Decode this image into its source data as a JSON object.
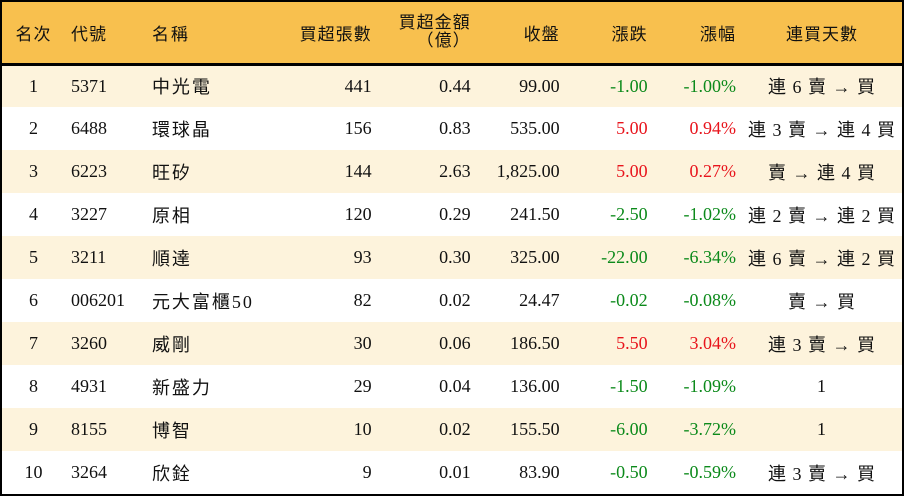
{
  "table": {
    "headers": {
      "rank": "名次",
      "code": "代號",
      "name": "名稱",
      "net_buy_lots": "買超張數",
      "net_buy_amount_line1": "買超金額",
      "net_buy_amount_line2": "（億）",
      "close": "收盤",
      "change": "漲跌",
      "change_pct": "漲幅",
      "buy_streak": "連買天數"
    },
    "colors": {
      "header_bg": "#f8c04e",
      "odd_row_bg": "#fdf3dc",
      "even_row_bg": "#ffffff",
      "up": "#e8141c",
      "down": "#0c8a1b"
    },
    "rows": [
      {
        "rank": "1",
        "code": "5371",
        "name": "中光電",
        "lots": "441",
        "amount": "0.44",
        "close": "99.00",
        "change": "-1.00",
        "pct": "-1.00%",
        "dir": "down",
        "streak": "連 6 賣 → 買"
      },
      {
        "rank": "2",
        "code": "6488",
        "name": "環球晶",
        "lots": "156",
        "amount": "0.83",
        "close": "535.00",
        "change": "5.00",
        "pct": "0.94%",
        "dir": "up",
        "streak": "連 3 賣 → 連 4 買"
      },
      {
        "rank": "3",
        "code": "6223",
        "name": "旺矽",
        "lots": "144",
        "amount": "2.63",
        "close": "1,825.00",
        "change": "5.00",
        "pct": "0.27%",
        "dir": "up",
        "streak": "賣 → 連 4 買"
      },
      {
        "rank": "4",
        "code": "3227",
        "name": "原相",
        "lots": "120",
        "amount": "0.29",
        "close": "241.50",
        "change": "-2.50",
        "pct": "-1.02%",
        "dir": "down",
        "streak": "連 2 賣 → 連 2 買"
      },
      {
        "rank": "5",
        "code": "3211",
        "name": "順達",
        "lots": "93",
        "amount": "0.30",
        "close": "325.00",
        "change": "-22.00",
        "pct": "-6.34%",
        "dir": "down",
        "streak": "連 6 賣 → 連 2 買"
      },
      {
        "rank": "6",
        "code": "006201",
        "name": "元大富櫃50",
        "lots": "82",
        "amount": "0.02",
        "close": "24.47",
        "change": "-0.02",
        "pct": "-0.08%",
        "dir": "down",
        "streak": "賣 → 買"
      },
      {
        "rank": "7",
        "code": "3260",
        "name": "威剛",
        "lots": "30",
        "amount": "0.06",
        "close": "186.50",
        "change": "5.50",
        "pct": "3.04%",
        "dir": "up",
        "streak": "連 3 賣 → 買"
      },
      {
        "rank": "8",
        "code": "4931",
        "name": "新盛力",
        "lots": "29",
        "amount": "0.04",
        "close": "136.00",
        "change": "-1.50",
        "pct": "-1.09%",
        "dir": "down",
        "streak": "1"
      },
      {
        "rank": "9",
        "code": "8155",
        "name": "博智",
        "lots": "10",
        "amount": "0.02",
        "close": "155.50",
        "change": "-6.00",
        "pct": "-3.72%",
        "dir": "down",
        "streak": "1"
      },
      {
        "rank": "10",
        "code": "3264",
        "name": "欣銓",
        "lots": "9",
        "amount": "0.01",
        "close": "83.90",
        "change": "-0.50",
        "pct": "-0.59%",
        "dir": "down",
        "streak": "連 3 賣 → 買"
      }
    ]
  }
}
